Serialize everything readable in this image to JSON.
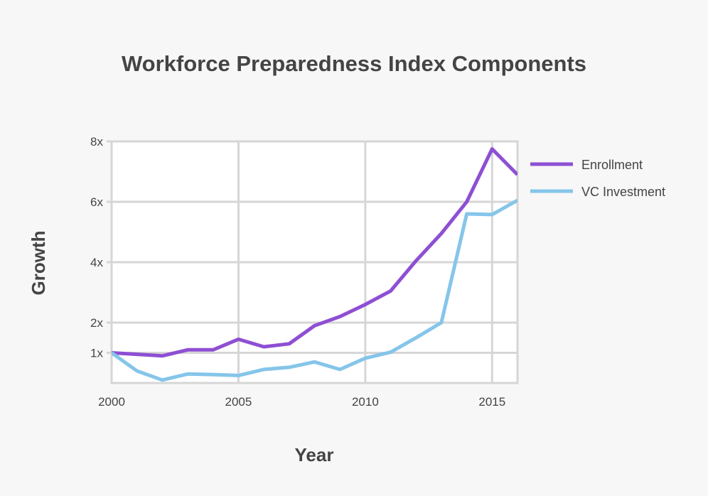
{
  "chart_data": {
    "type": "line",
    "title": "Workforce Preparedness Index Components",
    "xlabel": "Year",
    "ylabel": "Growth",
    "x": [
      2000,
      2001,
      2002,
      2003,
      2004,
      2005,
      2006,
      2007,
      2008,
      2009,
      2010,
      2011,
      2012,
      2013,
      2014,
      2015,
      2016
    ],
    "xlim": [
      2000,
      2016
    ],
    "ylim": [
      0,
      8
    ],
    "x_ticks": [
      2000,
      2005,
      2010,
      2015
    ],
    "x_tick_labels": [
      "2000",
      "2005",
      "2010",
      "2015"
    ],
    "y_ticks": [
      1,
      2,
      4,
      6,
      8
    ],
    "y_tick_labels": [
      "1x",
      "2x",
      "4x",
      "6x",
      "8x"
    ],
    "grid": true,
    "legend_position": "right",
    "series": [
      {
        "name": "Enrollment",
        "color": "#8e4fd3",
        "values": [
          1.0,
          0.95,
          0.9,
          1.1,
          1.1,
          1.45,
          1.2,
          1.3,
          1.9,
          2.2,
          2.6,
          3.05,
          4.05,
          4.95,
          6.0,
          7.75,
          6.9
        ]
      },
      {
        "name": "VC Investment",
        "color": "#85c5ea",
        "values": [
          1.0,
          0.4,
          0.1,
          0.3,
          0.28,
          0.25,
          0.45,
          0.52,
          0.7,
          0.45,
          0.82,
          1.02,
          1.5,
          2.0,
          5.6,
          5.58,
          6.05
        ]
      }
    ]
  }
}
